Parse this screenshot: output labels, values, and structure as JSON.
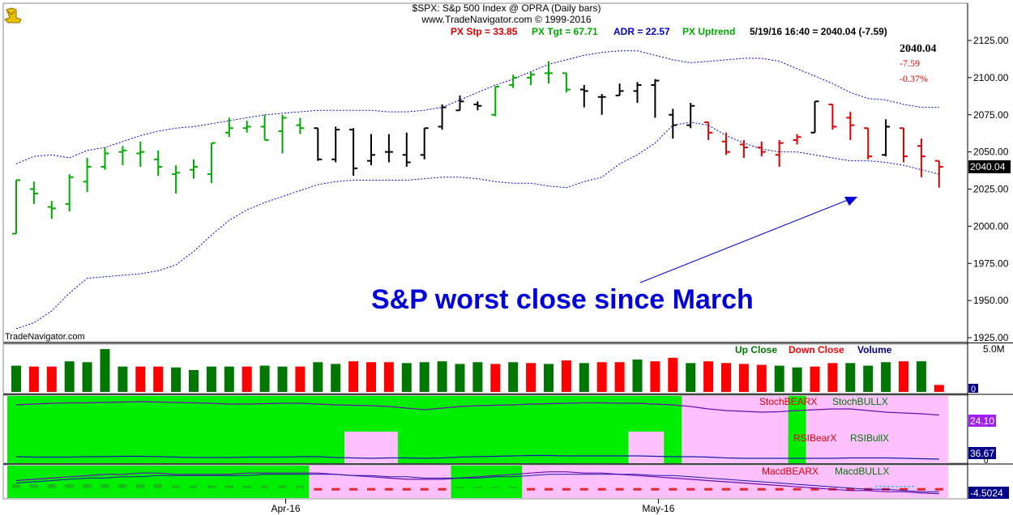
{
  "header": {
    "title": "$SPX:  S&p 500 Index @ OPRA  (Daily bars)",
    "copyright": "www.TradeNavigator.com © 1999-2016",
    "stats": [
      {
        "text": "PX Stp = 33.85",
        "color": "#e00000"
      },
      {
        "text": "PX Tgt = 67.71",
        "color": "#00aa00"
      },
      {
        "text": "ADR = 22.57",
        "color": "#0000cc"
      },
      {
        "text": "PX Uptrend",
        "color": "#00aa00"
      },
      {
        "text": "5/19/16 16:40 = 2040.04 (-7.59)",
        "color": "#000000"
      }
    ]
  },
  "quote": {
    "last": "2040.04",
    "change": "-7.59",
    "change_pct": "-0.37%",
    "last_label": "2040.04"
  },
  "watermark": "TradeNavigator.com",
  "annotation": "S&P worst close since March",
  "colors": {
    "up": "#00aa00",
    "down": "#e00000",
    "neutral": "#000000",
    "band": "#0000cc",
    "vol_up": "#007700",
    "vol_down": "#ff0000",
    "green_bg": "#00ee00",
    "pink_bg": "#ffc0ff",
    "annotation": "#0000dd"
  },
  "chart_data": {
    "type": "bar",
    "price": {
      "yaxis_ticks": [
        1925,
        1950,
        1975,
        2000,
        2025,
        2050,
        2075,
        2100,
        2125
      ],
      "ylim": [
        1922,
        2135
      ],
      "bars": [
        {
          "o": 1995,
          "h": 2031,
          "l": 1995,
          "c": 2031,
          "col": "g"
        },
        {
          "o": 2025,
          "h": 2030,
          "l": 2015,
          "c": 2022,
          "col": "g"
        },
        {
          "o": 2013,
          "h": 2017,
          "l": 2005,
          "c": 2012,
          "col": "g"
        },
        {
          "o": 2015,
          "h": 2035,
          "l": 2010,
          "c": 2033,
          "col": "g"
        },
        {
          "o": 2030,
          "h": 2046,
          "l": 2023,
          "c": 2040,
          "col": "g"
        },
        {
          "o": 2040,
          "h": 2053,
          "l": 2038,
          "c": 2049,
          "col": "g"
        },
        {
          "o": 2050,
          "h": 2054,
          "l": 2041,
          "c": 2051,
          "col": "g"
        },
        {
          "o": 2049,
          "h": 2057,
          "l": 2040,
          "c": 2050,
          "col": "g"
        },
        {
          "o": 2045,
          "h": 2051,
          "l": 2034,
          "c": 2040,
          "col": "g"
        },
        {
          "o": 2035,
          "h": 2041,
          "l": 2022,
          "c": 2036,
          "col": "g"
        },
        {
          "o": 2038,
          "h": 2045,
          "l": 2032,
          "c": 2040,
          "col": "g"
        },
        {
          "o": 2035,
          "h": 2056,
          "l": 2029,
          "c": 2056,
          "col": "g"
        },
        {
          "o": 2063,
          "h": 2073,
          "l": 2060,
          "c": 2066,
          "col": "g"
        },
        {
          "o": 2066,
          "h": 2071,
          "l": 2063,
          "c": 2067,
          "col": "g"
        },
        {
          "o": 2067,
          "h": 2075,
          "l": 2058,
          "c": 2058,
          "col": "g"
        },
        {
          "o": 2064,
          "h": 2075,
          "l": 2049,
          "c": 2073,
          "col": "g"
        },
        {
          "o": 2068,
          "h": 2073,
          "l": 2062,
          "c": 2066,
          "col": "g"
        },
        {
          "o": 2066,
          "h": 2066,
          "l": 2044,
          "c": 2045,
          "col": "k"
        },
        {
          "o": 2045,
          "h": 2067,
          "l": 2043,
          "c": 2065,
          "col": "k"
        },
        {
          "o": 2065,
          "h": 2066,
          "l": 2034,
          "c": 2039,
          "col": "k"
        },
        {
          "o": 2044,
          "h": 2062,
          "l": 2041,
          "c": 2048,
          "col": "k"
        },
        {
          "o": 2050,
          "h": 2062,
          "l": 2043,
          "c": 2050,
          "col": "k"
        },
        {
          "o": 2048,
          "h": 2063,
          "l": 2040,
          "c": 2043,
          "col": "k"
        },
        {
          "o": 2048,
          "h": 2066,
          "l": 2045,
          "c": 2066,
          "col": "k"
        },
        {
          "o": 2067,
          "h": 2082,
          "l": 2065,
          "c": 2080,
          "col": "k"
        },
        {
          "o": 2078,
          "h": 2088,
          "l": 2078,
          "c": 2084,
          "col": "k"
        },
        {
          "o": 2082,
          "h": 2084,
          "l": 2078,
          "c": 2081,
          "col": "k"
        },
        {
          "o": 2075,
          "h": 2094,
          "l": 2074,
          "c": 2094,
          "col": "g"
        },
        {
          "o": 2095,
          "h": 2102,
          "l": 2093,
          "c": 2100,
          "col": "g"
        },
        {
          "o": 2100,
          "h": 2104,
          "l": 2095,
          "c": 2102,
          "col": "g"
        },
        {
          "o": 2103,
          "h": 2111,
          "l": 2096,
          "c": 2103,
          "col": "g"
        },
        {
          "o": 2103,
          "h": 2103,
          "l": 2090,
          "c": 2092,
          "col": "g"
        },
        {
          "o": 2092,
          "h": 2095,
          "l": 2080,
          "c": 2091,
          "col": "k"
        },
        {
          "o": 2087,
          "h": 2089,
          "l": 2075,
          "c": 2087,
          "col": "k"
        },
        {
          "o": 2088,
          "h": 2096,
          "l": 2088,
          "c": 2091,
          "col": "k"
        },
        {
          "o": 2091,
          "h": 2097,
          "l": 2083,
          "c": 2095,
          "col": "k"
        },
        {
          "o": 2095,
          "h": 2099,
          "l": 2073,
          "c": 2098,
          "col": "k"
        },
        {
          "o": 2075,
          "h": 2079,
          "l": 2059,
          "c": 2068,
          "col": "k"
        },
        {
          "o": 2068,
          "h": 2083,
          "l": 2066,
          "c": 2081,
          "col": "k"
        },
        {
          "o": 2070,
          "h": 2070,
          "l": 2058,
          "c": 2063,
          "col": "r"
        },
        {
          "o": 2057,
          "h": 2063,
          "l": 2048,
          "c": 2050,
          "col": "r"
        },
        {
          "o": 2055,
          "h": 2058,
          "l": 2046,
          "c": 2053,
          "col": "r"
        },
        {
          "o": 2053,
          "h": 2057,
          "l": 2047,
          "c": 2050,
          "col": "r"
        },
        {
          "o": 2048,
          "h": 2058,
          "l": 2040,
          "c": 2056,
          "col": "r"
        },
        {
          "o": 2058,
          "h": 2062,
          "l": 2055,
          "c": 2060,
          "col": "r"
        },
        {
          "o": 2063,
          "h": 2084,
          "l": 2063,
          "c": 2084,
          "col": "k"
        },
        {
          "o": 2082,
          "h": 2082,
          "l": 2065,
          "c": 2067,
          "col": "r"
        },
        {
          "o": 2073,
          "h": 2077,
          "l": 2058,
          "c": 2068,
          "col": "r"
        },
        {
          "o": 2066,
          "h": 2066,
          "l": 2045,
          "c": 2047,
          "col": "r"
        },
        {
          "o": 2048,
          "h": 2072,
          "l": 2047,
          "c": 2067,
          "col": "k"
        },
        {
          "o": 2066,
          "h": 2066,
          "l": 2043,
          "c": 2047,
          "col": "r"
        },
        {
          "o": 2054,
          "h": 2059,
          "l": 2033,
          "c": 2047,
          "col": "r"
        },
        {
          "o": 2044,
          "h": 2044,
          "l": 2026,
          "c": 2040,
          "col": "r"
        }
      ],
      "upper_band": [
        2042,
        2047,
        2048,
        2046,
        2051,
        2053,
        2057,
        2061,
        2064,
        2066,
        2067,
        2069,
        2071,
        2073,
        2075,
        2076,
        2077,
        2078,
        2078,
        2078,
        2078,
        2077,
        2077,
        2078,
        2080,
        2085,
        2090,
        2095,
        2099,
        2104,
        2109,
        2112,
        2115,
        2117,
        2118,
        2118,
        2115,
        2112,
        2110,
        2111,
        2112,
        2113,
        2113,
        2111,
        2106,
        2101,
        2096,
        2090,
        2086,
        2085,
        2082,
        2080,
        2080
      ],
      "lower_band": [
        1931,
        1935,
        1943,
        1955,
        1965,
        1966,
        1967,
        1968,
        1970,
        1974,
        1983,
        1994,
        2004,
        2011,
        2016,
        2020,
        2024,
        2028,
        2030,
        2031,
        2031,
        2031,
        2031,
        2032,
        2033,
        2033,
        2032,
        2030,
        2029,
        2029,
        2027,
        2026,
        2030,
        2033,
        2042,
        2048,
        2056,
        2068,
        2070,
        2068,
        2061,
        2056,
        2052,
        2050,
        2050,
        2048,
        2046,
        2044,
        2044,
        2043,
        2041,
        2038,
        2035
      ]
    },
    "volume": {
      "scale_label": "5.0M",
      "zero_label": "0",
      "legend": [
        {
          "text": "Up Close",
          "color": "#007700"
        },
        {
          "text": "Down Close",
          "color": "#ff0000"
        },
        {
          "text": "Volume",
          "color": "#00008b"
        }
      ],
      "values": [
        3.0,
        2.9,
        2.9,
        3.5,
        3.4,
        4.9,
        2.9,
        2.9,
        2.9,
        2.8,
        2.5,
        2.9,
        2.9,
        2.9,
        3.0,
        2.9,
        2.9,
        3.4,
        3.2,
        3.5,
        3.4,
        3.4,
        3.3,
        3.4,
        3.5,
        3.2,
        3.4,
        3.2,
        3.4,
        3.3,
        3.2,
        3.6,
        3.3,
        3.4,
        3.4,
        3.7,
        3.5,
        3.9,
        3.3,
        3.5,
        3.3,
        3.2,
        3.1,
        3.0,
        2.8,
        2.9,
        3.3,
        3.3,
        3.0,
        3.4,
        3.5,
        3.5,
        0.8
      ],
      "colors": [
        "u",
        "d",
        "d",
        "u",
        "u",
        "u",
        "u",
        "d",
        "d",
        "u",
        "u",
        "u",
        "u",
        "d",
        "u",
        "u",
        "d",
        "u",
        "u",
        "d",
        "d",
        "d",
        "u",
        "u",
        "u",
        "u",
        "u",
        "d",
        "u",
        "d",
        "u",
        "d",
        "u",
        "d",
        "d",
        "u",
        "d",
        "d",
        "u",
        "d",
        "d",
        "d",
        "d",
        "u",
        "u",
        "d",
        "d",
        "u",
        "u",
        "u",
        "d",
        "u",
        "d"
      ]
    },
    "stochrsi": {
      "legend_top": [
        {
          "text": "StochBEARX",
          "color": "#e00000"
        },
        {
          "text": "StochBULLX",
          "color": "#007700"
        }
      ],
      "legend_mid": [
        {
          "text": "RSIBearX",
          "color": "#e00000"
        },
        {
          "text": "RSIBullX",
          "color": "#007700"
        }
      ],
      "value_top": "24.10",
      "value_mid": "36.67",
      "zero_label": "0",
      "background": [
        "g",
        "g",
        "g",
        "g",
        "g",
        "g",
        "g",
        "g",
        "g",
        "g",
        "g",
        "g",
        "g",
        "g",
        "g",
        "g",
        "g",
        "pr",
        "pg",
        "pp",
        "pp",
        "pp",
        "g",
        "g",
        "g",
        "g",
        "g",
        "g",
        "g",
        "g",
        "g",
        "g",
        "g",
        "g",
        "g",
        "pp",
        "pp",
        "pg",
        "p",
        "p",
        "p",
        "p",
        "p",
        "p",
        "pg",
        "p",
        "p",
        "p",
        "p",
        "p",
        "p",
        "p",
        "p"
      ],
      "stoch_line": [
        80,
        82,
        84,
        85,
        85,
        86,
        87,
        88,
        87,
        86,
        85,
        84,
        82,
        82,
        83,
        84,
        84,
        82,
        80,
        79,
        78,
        76,
        72,
        68,
        72,
        76,
        78,
        79,
        80,
        82,
        83,
        84,
        85,
        85,
        84,
        84,
        82,
        80,
        76,
        70,
        66,
        64,
        62,
        63,
        66,
        68,
        70,
        70,
        66,
        62,
        60,
        58,
        55
      ],
      "rsi_line": [
        28,
        27,
        27,
        27,
        28,
        28,
        29,
        29,
        28,
        27,
        26,
        26,
        26,
        27,
        27,
        27,
        28,
        28,
        26,
        25,
        24,
        25,
        25,
        24,
        25,
        27,
        28,
        29,
        30,
        31,
        31,
        30,
        30,
        30,
        30,
        30,
        29,
        28,
        28,
        27,
        25,
        24,
        24,
        24,
        24,
        24,
        24,
        25,
        25,
        25,
        24,
        23,
        22
      ]
    },
    "macd": {
      "legend": [
        {
          "text": "MacdBEARX",
          "color": "#e00000"
        },
        {
          "text": "MacdBULLX",
          "color": "#007700"
        }
      ],
      "value_label": "-4.5024",
      "background": [
        "g",
        "g",
        "g",
        "g",
        "g",
        "g",
        "g",
        "g",
        "g",
        "g",
        "g",
        "g",
        "g",
        "g",
        "g",
        "g",
        "g",
        "p",
        "p",
        "p",
        "p",
        "p",
        "p",
        "p",
        "p",
        "g",
        "g",
        "g",
        "g",
        "p",
        "p",
        "p",
        "p",
        "p",
        "p",
        "p",
        "p",
        "p",
        "p",
        "p",
        "p",
        "p",
        "p",
        "p",
        "p",
        "p",
        "p",
        "p",
        "p",
        "p",
        "p",
        "p",
        "p"
      ],
      "macd_line": [
        6,
        7,
        8,
        9,
        10,
        11,
        11,
        12,
        12,
        11,
        11,
        11,
        11,
        12,
        12,
        12,
        12,
        12,
        11,
        10,
        9,
        8,
        7,
        7,
        7,
        8,
        9,
        10,
        11,
        12,
        13,
        13,
        12,
        12,
        11,
        10,
        9,
        8,
        7,
        6,
        5,
        4,
        3,
        2,
        1,
        0,
        -1,
        -2,
        -2,
        -3,
        -3,
        -4,
        -4.5
      ],
      "signal_line": [
        4,
        5,
        6,
        7,
        8,
        8,
        9,
        9,
        10,
        10,
        10,
        10,
        10,
        10,
        11,
        11,
        11,
        11,
        11,
        10,
        10,
        9,
        9,
        8,
        8,
        8,
        8,
        9,
        9,
        10,
        11,
        11,
        11,
        11,
        11,
        11,
        10,
        10,
        9,
        8,
        7,
        6,
        5,
        4,
        3,
        2,
        1,
        0,
        -1,
        -1,
        -2,
        -3,
        -3
      ],
      "hist": [
        3,
        3,
        3,
        3,
        3,
        3,
        3,
        3,
        3,
        2,
        2,
        2,
        2,
        2,
        2,
        2,
        2,
        -2,
        -2,
        -2,
        -2,
        -2,
        -2,
        -2,
        -2,
        1,
        1,
        1,
        1,
        -2,
        -2,
        -2,
        -2,
        -2,
        -2,
        -2,
        -2,
        -2,
        -2,
        -2,
        -2,
        -2,
        -2,
        -2,
        -2,
        -2,
        -2,
        -2,
        -2,
        -2,
        -2,
        -2,
        -2
      ],
      "ylim": [
        -8,
        18
      ]
    },
    "x_labels": [
      {
        "text": "Apr-16",
        "bar": 15
      },
      {
        "text": "May-16",
        "bar": 36
      }
    ]
  }
}
